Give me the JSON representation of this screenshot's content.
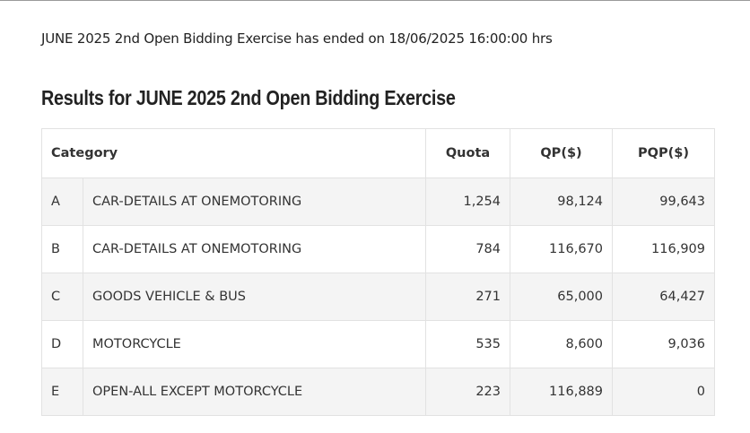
{
  "notice": "JUNE 2025 2nd Open Bidding Exercise has ended on 18/06/2025 16:00:00 hrs",
  "heading": "Results for JUNE 2025 2nd Open Bidding Exercise",
  "table": {
    "headers": {
      "category": "Category",
      "quota": "Quota",
      "qp": "QP($)",
      "pqp": "PQP($)"
    },
    "rows": [
      {
        "code": "A",
        "description": "CAR-DETAILS AT ONEMOTORING",
        "quota": "1,254",
        "qp": "98,124",
        "pqp": "99,643"
      },
      {
        "code": "B",
        "description": "CAR-DETAILS AT ONEMOTORING",
        "quota": "784",
        "qp": "116,670",
        "pqp": "116,909"
      },
      {
        "code": "C",
        "description": "GOODS VEHICLE & BUS",
        "quota": "271",
        "qp": "65,000",
        "pqp": "64,427"
      },
      {
        "code": "D",
        "description": "MOTORCYCLE",
        "quota": "535",
        "qp": "8,600",
        "pqp": "9,036"
      },
      {
        "code": "E",
        "description": "OPEN-ALL EXCEPT MOTORCYCLE",
        "quota": "223",
        "qp": "116,889",
        "pqp": "0"
      }
    ]
  }
}
